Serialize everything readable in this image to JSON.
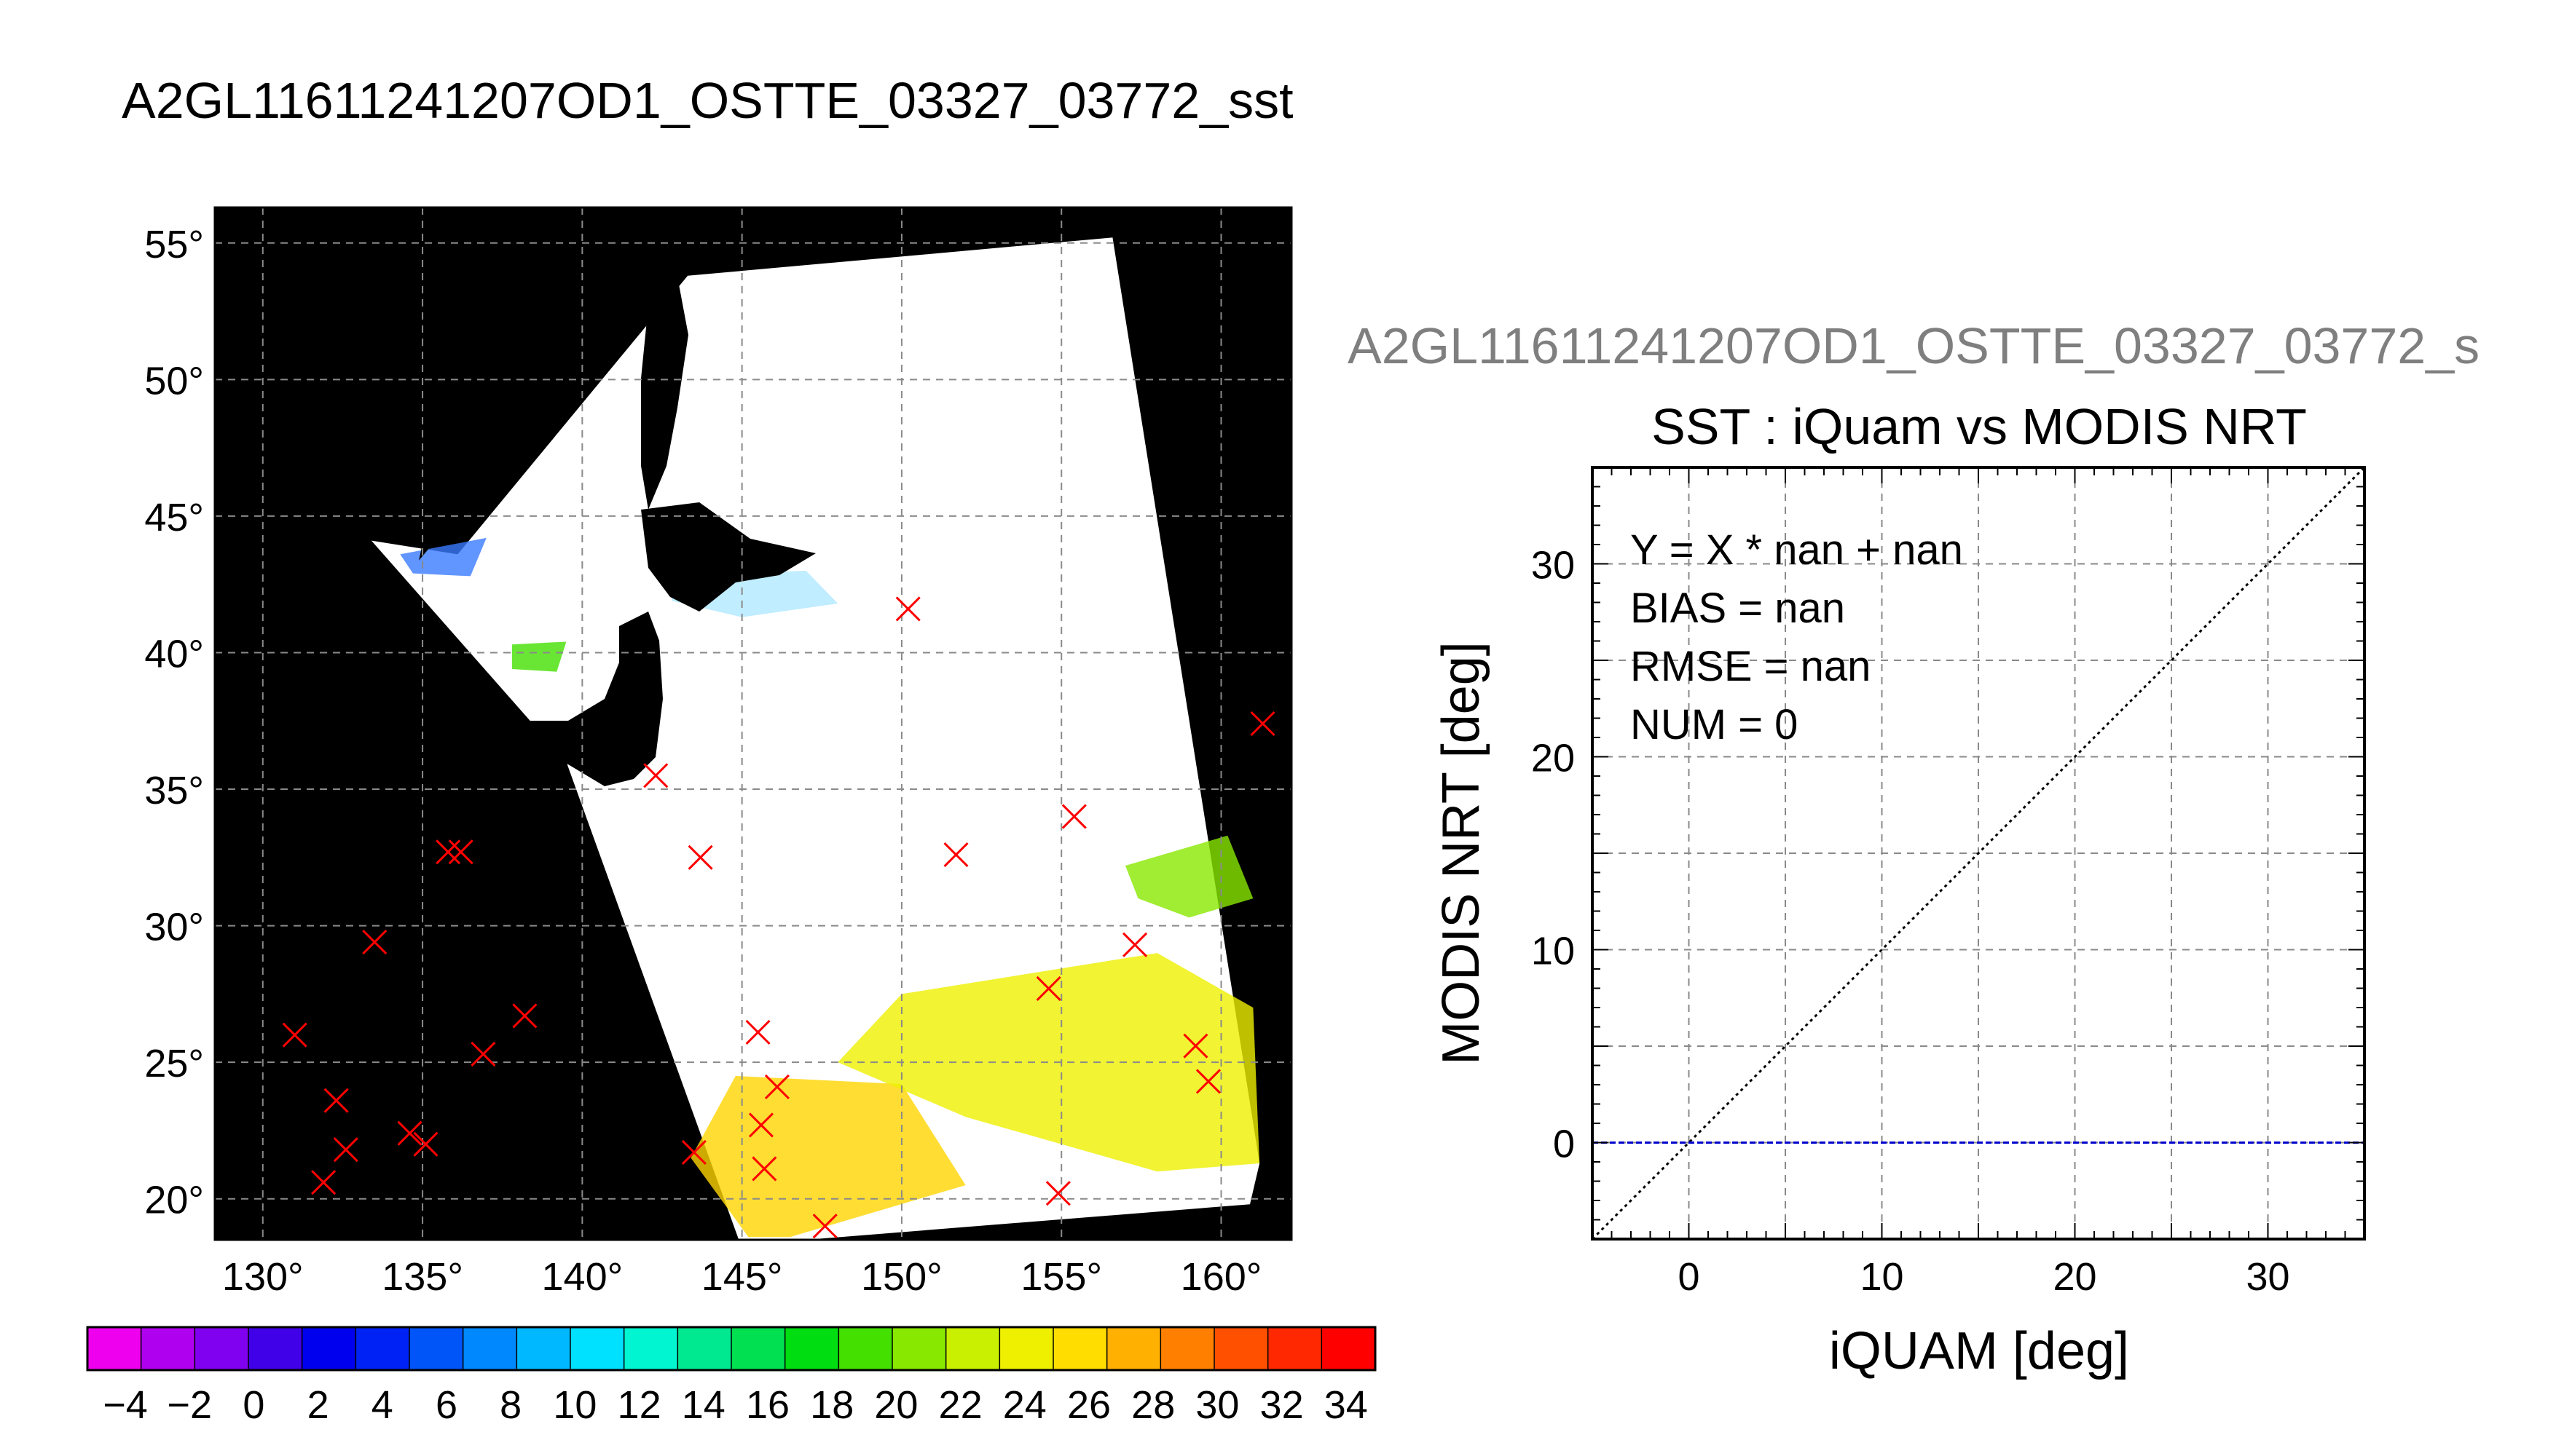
{
  "figure_title": "A2GL11611241207OD1_OSTTE_03327_03772_sst",
  "right_panel_title": "A2GL11611241207OD1_OSTTE_03327_03772_s",
  "chart_data": [
    {
      "type": "map",
      "title": "A2GL11611241207OD1_OSTTE_03327_03772_sst",
      "xlim": [
        128.5,
        162.2
      ],
      "ylim": [
        18.5,
        56.3
      ],
      "x_ticks": [
        130,
        135,
        140,
        145,
        150,
        155,
        160
      ],
      "y_ticks": [
        20,
        25,
        30,
        35,
        40,
        45,
        50,
        55
      ],
      "degree_symbol": "°",
      "grid": true,
      "swath_corners_lonlat": [
        [
          136.1,
          43.6
        ],
        [
          143.3,
          53.8
        ],
        [
          156.6,
          55.2
        ],
        [
          161.2,
          21.3
        ],
        [
          160.9,
          19.8
        ],
        [
          147.0,
          18.5
        ],
        [
          144.9,
          18.5
        ],
        [
          139.5,
          36.0
        ],
        [
          133.4,
          44.1
        ]
      ],
      "markers": {
        "symbol": "x",
        "color": "#ff0000",
        "points": [
          [
            131.0,
            26.0
          ],
          [
            132.3,
            23.6
          ],
          [
            132.6,
            21.8
          ],
          [
            131.9,
            20.6
          ],
          [
            134.6,
            22.4
          ],
          [
            135.1,
            22.0
          ],
          [
            133.5,
            29.4
          ],
          [
            135.8,
            32.7
          ],
          [
            136.2,
            32.7
          ],
          [
            136.9,
            25.3
          ],
          [
            138.2,
            26.7
          ],
          [
            142.3,
            35.5
          ],
          [
            143.7,
            32.5
          ],
          [
            143.5,
            21.7
          ],
          [
            145.5,
            26.1
          ],
          [
            145.6,
            22.7
          ],
          [
            145.7,
            21.1
          ],
          [
            146.1,
            24.1
          ],
          [
            147.6,
            19.0
          ],
          [
            150.2,
            41.6
          ],
          [
            151.7,
            32.6
          ],
          [
            154.6,
            27.7
          ],
          [
            154.9,
            20.2
          ],
          [
            155.4,
            34.0
          ],
          [
            157.3,
            29.3
          ],
          [
            159.2,
            25.6
          ],
          [
            159.6,
            24.3
          ],
          [
            161.3,
            37.4
          ]
        ]
      }
    },
    {
      "type": "colorbar",
      "ticks": [
        "−4",
        "−2",
        "0",
        "2",
        "4",
        "6",
        "8",
        "10",
        "12",
        "14",
        "16",
        "18",
        "20",
        "22",
        "24",
        "26",
        "28",
        "30",
        "32",
        "34"
      ],
      "range": [
        -5,
        35
      ],
      "segment_colors": [
        "#ee00ee",
        "#b000f0",
        "#8000f0",
        "#4000e8",
        "#0000ee",
        "#0022f4",
        "#0055f8",
        "#0088ff",
        "#00b8ff",
        "#00e0ff",
        "#00f5d0",
        "#00e890",
        "#00e050",
        "#00dd10",
        "#44e000",
        "#88e800",
        "#c8f000",
        "#eef000",
        "#ffdd00",
        "#ffb000",
        "#ff8000",
        "#ff5000",
        "#ff2800",
        "#ff0000"
      ]
    },
    {
      "type": "scatter",
      "title": "SST : iQuam vs MODIS NRT",
      "xlabel": "iQUAM [deg]",
      "ylabel": "MODIS NRT [deg]",
      "xlim": [
        -5,
        35
      ],
      "ylim": [
        -5,
        35
      ],
      "x_ticks": [
        0,
        10,
        20,
        30
      ],
      "y_ticks": [
        0,
        10,
        20,
        30
      ],
      "grid": true,
      "points": [],
      "lines": [
        {
          "kind": "1:1",
          "x": [
            -5,
            35
          ],
          "y": [
            -5,
            35
          ],
          "color": "#000000",
          "style": "dotted"
        },
        {
          "kind": "fit",
          "x": [
            -5,
            35
          ],
          "y": [
            0,
            0
          ],
          "color": "#0000cc",
          "style": "dashed"
        }
      ],
      "stats": {
        "fit_label": "Y = X * nan + nan",
        "bias_label": "BIAS = nan",
        "rmse_label": "RMSE = nan",
        "num_label": "NUM = 0"
      }
    }
  ]
}
